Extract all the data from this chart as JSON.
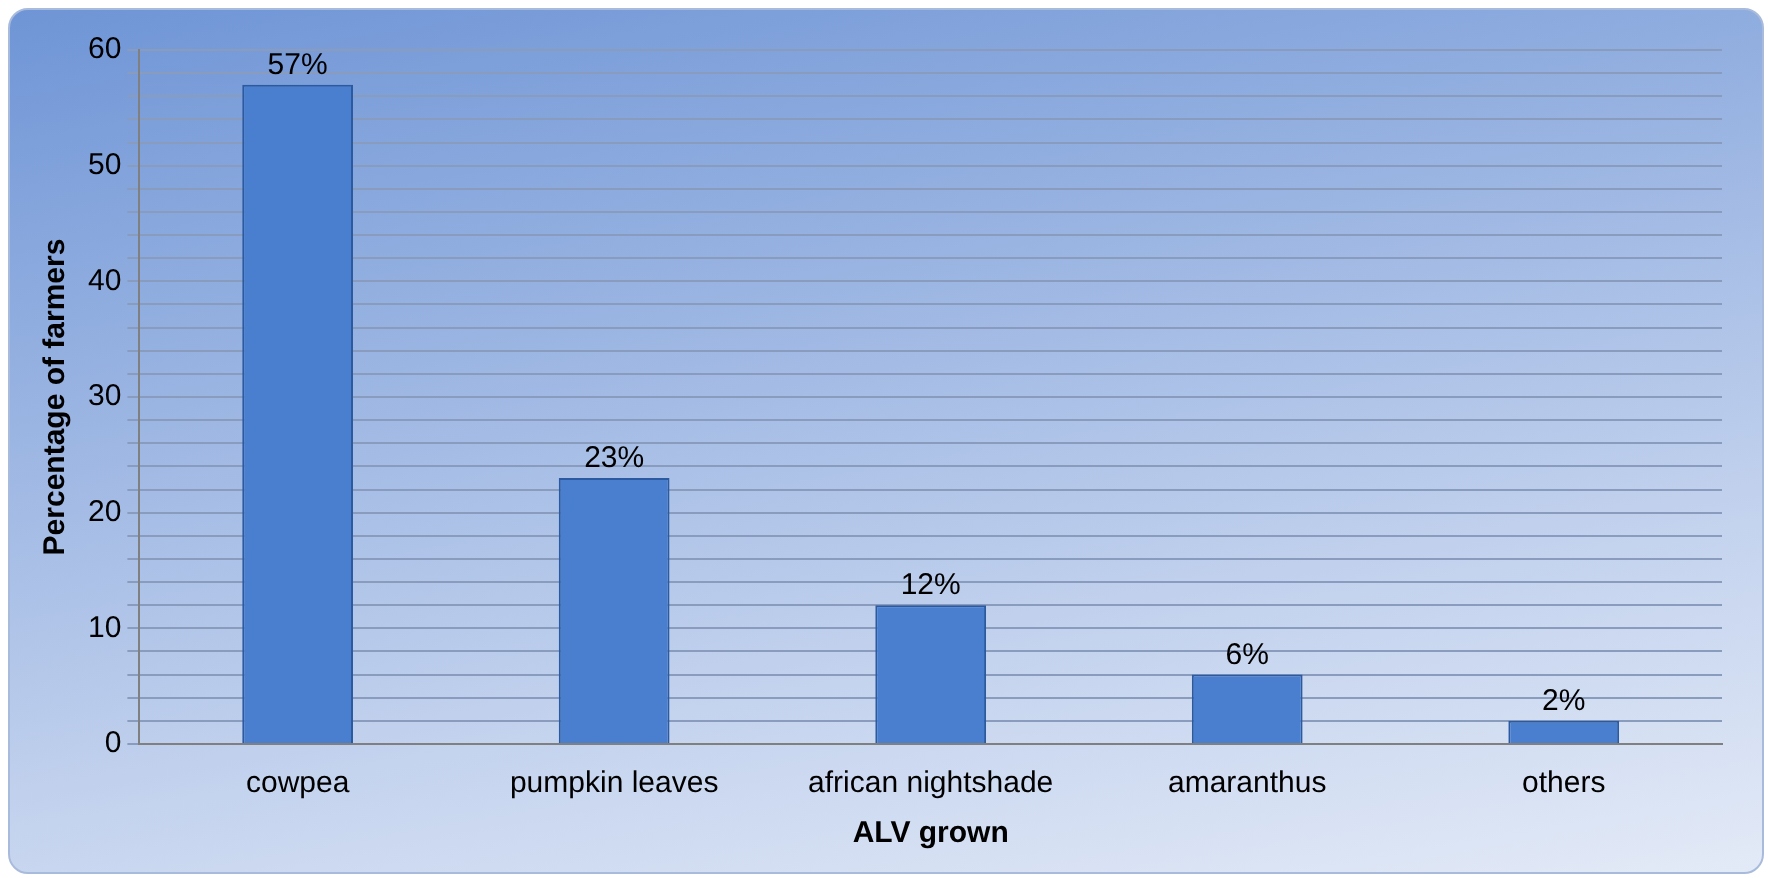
{
  "chart_data": {
    "type": "bar",
    "xlabel": "ALV grown",
    "ylabel": "Percentage of farmers",
    "categories": [
      "cowpea",
      "pumpkin leaves",
      "african nightshade",
      "amaranthus",
      "others"
    ],
    "values": [
      57,
      23,
      12,
      6,
      2
    ],
    "value_labels": [
      "57%",
      "23%",
      "12%",
      "6%",
      "2%"
    ],
    "color": "#4a7fcf",
    "ylim": [
      0,
      60
    ],
    "yticks": [
      0,
      {
        "value": 2,
        "label": null
      },
      {
        "value": 4,
        "label": null
      },
      {
        "value": 6,
        "label": null
      },
      {
        "value": 8,
        "label": null
      },
      10,
      {
        "value": 12,
        "label": null
      },
      {
        "value": 14,
        "label": null
      },
      {
        "value": 16,
        "label": null
      },
      {
        "value": 18,
        "label": null
      },
      20,
      {
        "value": 22,
        "label": null
      },
      {
        "value": 24,
        "label": null
      },
      {
        "value": 26,
        "label": null
      },
      {
        "value": 28,
        "label": null
      },
      30,
      {
        "value": 32,
        "label": null
      },
      {
        "value": 34,
        "label": null
      },
      {
        "value": 36,
        "label": null
      },
      {
        "value": 38,
        "label": null
      },
      40,
      {
        "value": 42,
        "label": null
      },
      {
        "value": 44,
        "label": null
      },
      {
        "value": 46,
        "label": null
      },
      {
        "value": 48,
        "label": null
      },
      50,
      {
        "value": 52,
        "label": null
      },
      {
        "value": 54,
        "label": null
      },
      {
        "value": 56,
        "label": null
      },
      {
        "value": 58,
        "label": null
      },
      60
    ],
    "grid": "y",
    "legend": false
  }
}
